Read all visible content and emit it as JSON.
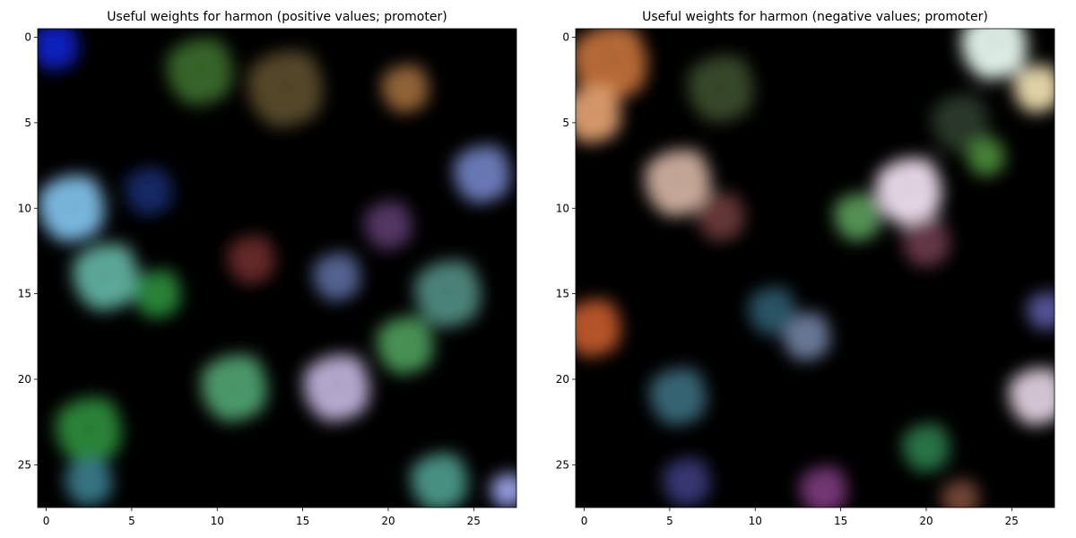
{
  "chart_data": [
    {
      "type": "heatmap",
      "title": "Useful weights for harmon (positive values; promoter)",
      "xlabel": "",
      "ylabel": "",
      "xlim": [
        -0.5,
        27.5
      ],
      "ylim": [
        27.5,
        -0.5
      ],
      "grid": false,
      "xticks": [
        0,
        5,
        10,
        15,
        20,
        25
      ],
      "yticks": [
        0,
        5,
        10,
        15,
        20,
        25
      ],
      "grid_size": [
        28,
        28
      ],
      "color_regions": [
        {
          "row": 0.5,
          "col": 0.5,
          "radius": 2.5,
          "color": "#1020c8"
        },
        {
          "row": 2,
          "col": 9,
          "radius": 3.5,
          "color": "#3a6a2a"
        },
        {
          "row": 3,
          "col": 14,
          "radius": 4,
          "color": "#5a4a2a"
        },
        {
          "row": 3,
          "col": 21,
          "radius": 2.5,
          "color": "#9a6a3a"
        },
        {
          "row": 10,
          "col": 1.5,
          "radius": 3.5,
          "color": "#80c0e8"
        },
        {
          "row": 8,
          "col": 25.5,
          "radius": 3,
          "color": "#7080c0"
        },
        {
          "row": 14,
          "col": 3.5,
          "radius": 3.5,
          "color": "#60b0a0"
        },
        {
          "row": 15,
          "col": 6.5,
          "radius": 2.5,
          "color": "#2a8a3a"
        },
        {
          "row": 15,
          "col": 23.5,
          "radius": 3.5,
          "color": "#508a80"
        },
        {
          "row": 14,
          "col": 17,
          "radius": 2.5,
          "color": "#5a6a9a"
        },
        {
          "row": 13,
          "col": 12,
          "radius": 2.5,
          "color": "#6a2a2a"
        },
        {
          "row": 18,
          "col": 21,
          "radius": 3,
          "color": "#4a9a5a"
        },
        {
          "row": 20.5,
          "col": 17,
          "radius": 3.5,
          "color": "#c0b0d8"
        },
        {
          "row": 20.5,
          "col": 11,
          "radius": 3.5,
          "color": "#50a070"
        },
        {
          "row": 23,
          "col": 2.5,
          "radius": 3.5,
          "color": "#2a8a3a"
        },
        {
          "row": 26,
          "col": 2.5,
          "radius": 2.5,
          "color": "#3a7a8a"
        },
        {
          "row": 26,
          "col": 23,
          "radius": 3,
          "color": "#4a9a8a"
        },
        {
          "row": 26.5,
          "col": 27,
          "radius": 1.8,
          "color": "#a0a8f0"
        },
        {
          "row": 11,
          "col": 20,
          "radius": 2.5,
          "color": "#5a3a6a"
        },
        {
          "row": 9,
          "col": 6,
          "radius": 2.5,
          "color": "#1a2a6a"
        }
      ]
    },
    {
      "type": "heatmap",
      "title": "Useful weights for harmon (negative values; promoter)",
      "xlabel": "",
      "ylabel": "",
      "xlim": [
        -0.5,
        27.5
      ],
      "ylim": [
        27.5,
        -0.5
      ],
      "grid": false,
      "xticks": [
        0,
        5,
        10,
        15,
        20,
        25
      ],
      "yticks": [
        0,
        5,
        10,
        15,
        20,
        25
      ],
      "grid_size": [
        28,
        28
      ],
      "color_regions": [
        {
          "row": 1.5,
          "col": 1.5,
          "radius": 4,
          "color": "#c07038"
        },
        {
          "row": 4.5,
          "col": 0.5,
          "radius": 3,
          "color": "#e0a070"
        },
        {
          "row": 3,
          "col": 8,
          "radius": 3.5,
          "color": "#3a4a2a"
        },
        {
          "row": 0.5,
          "col": 24,
          "radius": 3.5,
          "color": "#e8f8f0"
        },
        {
          "row": 3,
          "col": 26.5,
          "radius": 2.5,
          "color": "#f0e0b0"
        },
        {
          "row": 5,
          "col": 22,
          "radius": 3,
          "color": "#2a3a2a"
        },
        {
          "row": 8.5,
          "col": 5.5,
          "radius": 3.5,
          "color": "#d0b0a0"
        },
        {
          "row": 10.5,
          "col": 8,
          "radius": 2.5,
          "color": "#6a3a3a"
        },
        {
          "row": 9,
          "col": 19,
          "radius": 3.5,
          "color": "#f0e0f0"
        },
        {
          "row": 10.5,
          "col": 16,
          "radius": 2.5,
          "color": "#5a9a5a"
        },
        {
          "row": 12,
          "col": 20,
          "radius": 2.5,
          "color": "#6a3a4a"
        },
        {
          "row": 7,
          "col": 23.5,
          "radius": 2,
          "color": "#4a8a3a"
        },
        {
          "row": 17.5,
          "col": 13,
          "radius": 2.5,
          "color": "#7080a0"
        },
        {
          "row": 16,
          "col": 11,
          "radius": 2.5,
          "color": "#2a5a6a"
        },
        {
          "row": 17,
          "col": 0.5,
          "radius": 3,
          "color": "#c05a2a"
        },
        {
          "row": 21,
          "col": 5.5,
          "radius": 3,
          "color": "#3a6a7a"
        },
        {
          "row": 21,
          "col": 26.5,
          "radius": 3,
          "color": "#e0d0e0"
        },
        {
          "row": 24,
          "col": 20,
          "radius": 2.5,
          "color": "#2a7a4a"
        },
        {
          "row": 26.5,
          "col": 14,
          "radius": 2.5,
          "color": "#7a3a7a"
        },
        {
          "row": 26,
          "col": 6,
          "radius": 2.5,
          "color": "#3a3a7a"
        },
        {
          "row": 16,
          "col": 27,
          "radius": 2,
          "color": "#5a5aa0"
        },
        {
          "row": 27,
          "col": 22,
          "radius": 2,
          "color": "#7a4a3a"
        }
      ]
    }
  ]
}
